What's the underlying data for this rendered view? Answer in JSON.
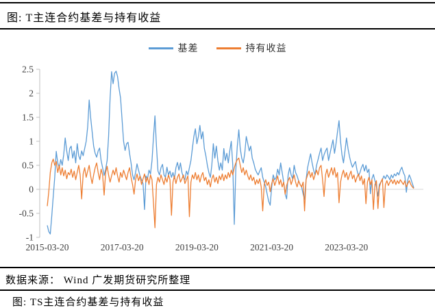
{
  "header": {
    "title": "图: T主连合约基差与持有收益"
  },
  "legend": [
    {
      "label": "基差",
      "color": "#5B9BD5"
    },
    {
      "label": "持有收益",
      "color": "#ED7D31"
    }
  ],
  "chart_data": {
    "type": "line",
    "title": "T主连合约基差与持有收益",
    "xlabel": "",
    "ylabel": "",
    "ylim": [
      -1,
      2.5
    ],
    "y_ticks": [
      2.5,
      2,
      1.5,
      1,
      0.5,
      0,
      -0.5,
      -1
    ],
    "x_tick_labels": [
      "2015-03-20",
      "2017-03-20",
      "2019-03-20",
      "2021-03-20",
      "2023-03-20"
    ],
    "x_tick_years": [
      2015.22,
      2017.22,
      2019.22,
      2021.22,
      2023.22
    ],
    "x_start": 2015.22,
    "x_step": 0.04,
    "grid": "zero-line-only",
    "legend_position": "top-center",
    "series": [
      {
        "name": "基差",
        "color": "#5B9BD5",
        "values": [
          -0.75,
          -0.88,
          -0.93,
          -0.55,
          -0.15,
          0.25,
          0.79,
          0.55,
          0.45,
          0.62,
          0.5,
          0.72,
          1.07,
          0.8,
          0.6,
          0.85,
          0.9,
          0.65,
          0.8,
          0.55,
          0.95,
          0.7,
          0.62,
          0.8,
          0.7,
          0.85,
          1.0,
          1.3,
          1.86,
          1.5,
          1.2,
          0.9,
          0.75,
          0.67,
          0.8,
          0.86,
          0.6,
          0.45,
          0.29,
          0.42,
          0.6,
          1.1,
          1.9,
          2.45,
          2.2,
          2.42,
          2.46,
          2.35,
          2.1,
          1.9,
          1.45,
          1.0,
          0.81,
          0.95,
          0.98,
          0.75,
          0.55,
          0.3,
          0.2,
          0.35,
          0.53,
          0.4,
          0.28,
          0.2,
          0.12,
          -0.42,
          0.28,
          0.22,
          0.4,
          0.32,
          0.6,
          1.1,
          1.53,
          0.9,
          0.38,
          0.3,
          0.45,
          0.52,
          0.3,
          0.25,
          0.46,
          0.3,
          0.38,
          0.25,
          0.35,
          0.22,
          0.45,
          0.56,
          0.4,
          0.55,
          0.35,
          0.25,
          0.2,
          0.38,
          0.3,
          0.45,
          0.6,
          0.85,
          1.1,
          1.26,
          0.95,
          1.1,
          1.33,
          1.05,
          1.2,
          0.85,
          0.7,
          0.5,
          0.35,
          0.25,
          0.5,
          0.95,
          0.65,
          0.9,
          0.6,
          0.4,
          0.55,
          0.4,
          0.85,
          0.6,
          0.75,
          0.55,
          0.8,
          1.0,
          0.5,
          -0.73,
          0.4,
          0.9,
          1.24,
          0.85,
          0.65,
          0.55,
          0.75,
          1.1,
          0.95,
          0.8,
          0.9,
          0.65,
          0.55,
          0.42,
          0.35,
          0.3,
          0.38,
          0.45,
          0.25,
          0.15,
          0.05,
          -0.1,
          -0.25,
          -0.33,
          0.05,
          0.3,
          0.2,
          0.25,
          0.42,
          0.3,
          0.55,
          0.35,
          0.15,
          -0.1,
          -0.2,
          0.3,
          0.45,
          0.3,
          0.22,
          0.5,
          0.35,
          0.28,
          0.18,
          0.1,
          0.05,
          -0.1,
          -0.21,
          0.2,
          0.45,
          0.6,
          0.74,
          0.55,
          0.4,
          0.3,
          0.5,
          0.62,
          0.75,
          0.86,
          0.6,
          0.72,
          0.8,
          0.86,
          0.6,
          0.75,
          0.9,
          1.03,
          0.75,
          0.95,
          1.2,
          1.43,
          1.0,
          0.72,
          0.55,
          0.8,
          1.07,
          0.85,
          0.68,
          0.55,
          0.46,
          0.52,
          0.58,
          0.4,
          0.28,
          0.35,
          0.45,
          0.52,
          0.38,
          0.5,
          0.35,
          0.42,
          -0.09,
          0.22,
          0.31,
          0.18,
          0.05,
          -0.14,
          0.1,
          0.15,
          0.2,
          0.28,
          0.22,
          0.3,
          0.26,
          0.2,
          0.3,
          0.24,
          0.32,
          0.28,
          0.35,
          0.3,
          0.4,
          0.46,
          0.35,
          0.28,
          -0.06,
          0.2,
          0.3,
          0.22,
          0.12,
          0.03
        ]
      },
      {
        "name": "持有收益",
        "color": "#ED7D31",
        "values": [
          -0.35,
          -0.05,
          0.35,
          0.55,
          0.63,
          0.5,
          0.58,
          0.35,
          0.5,
          0.3,
          0.45,
          0.28,
          0.4,
          0.22,
          0.35,
          0.3,
          0.42,
          0.25,
          0.38,
          0.2,
          0.35,
          0.5,
          0.3,
          -0.2,
          0.32,
          0.45,
          0.25,
          0.38,
          0.5,
          0.28,
          0.12,
          0.3,
          0.45,
          0.55,
          0.35,
          0.2,
          0.42,
          0.3,
          -0.12,
          0.35,
          0.48,
          0.3,
          0.15,
          0.28,
          0.4,
          0.3,
          0.45,
          0.28,
          0.15,
          0.35,
          0.25,
          0.4,
          0.3,
          0.2,
          0.35,
          0.45,
          0.25,
          0.1,
          -0.1,
          0.2,
          0.32,
          0.18,
          0.28,
          0.1,
          0.22,
          0.32,
          0.15,
          0.25,
          0.1,
          0.3,
          0.2,
          -0.3,
          -0.8,
          0.1,
          0.25,
          0.15,
          0.3,
          0.2,
          0.1,
          0.25,
          0.15,
          0.3,
          0.2,
          -0.54,
          0.15,
          0.28,
          0.12,
          0.25,
          0.32,
          0.15,
          0.22,
          0.3,
          0.12,
          0.2,
          0.28,
          -0.57,
          0.15,
          0.3,
          0.22,
          0.35,
          0.2,
          0.3,
          0.15,
          0.28,
          0.35,
          0.18,
          0.25,
          0.1,
          0.2,
          0.05,
          0.22,
          0.3,
          0.15,
          0.25,
          0.12,
          0.28,
          0.2,
          0.32,
          0.18,
          0.3,
          0.22,
          0.35,
          0.25,
          0.4,
          0.3,
          0.45,
          0.55,
          0.62,
          0.65,
          0.5,
          0.35,
          0.45,
          0.3,
          0.4,
          0.28,
          0.2,
          0.3,
          0.18,
          0.25,
          0.1,
          0.2,
          0.12,
          0.22,
          0.05,
          -0.45,
          0.1,
          0.2,
          0.08,
          0.15,
          -0.05,
          0.12,
          0.22,
          0.08,
          0.18,
          0.28,
          0.1,
          0.2,
          0.05,
          0.15,
          -0.1,
          0.08,
          0.18,
          0.25,
          0.1,
          0.2,
          0.3,
          0.15,
          0.05,
          0.18,
          0.1,
          0.05,
          0.15,
          -0.45,
          0.2,
          0.3,
          0.38,
          0.25,
          0.35,
          0.2,
          0.3,
          0.4,
          0.3,
          0.45,
          0.5,
          0.2,
          -0.15,
          0.3,
          0.42,
          0.25,
          0.35,
          0.45,
          0.3,
          0.45,
          0.25,
          0.35,
          -0.28,
          0.15,
          0.3,
          0.4,
          0.25,
          0.35,
          0.2,
          0.3,
          0.38,
          0.22,
          0.3,
          0.15,
          0.25,
          0.32,
          0.18,
          0.28,
          0.1,
          0.22,
          -0.3,
          0.15,
          0.25,
          0.1,
          0.2,
          -0.42,
          0.1,
          0.18,
          -0.4,
          0.05,
          0.15,
          0.22,
          -0.38,
          0.1,
          0.18,
          0.08,
          0.15,
          0.2,
          0.12,
          0.2,
          0.1,
          0.18,
          0.12,
          0.2,
          0.15,
          0.1,
          0.18,
          0.05,
          0.12,
          0.18,
          0.1,
          0.05,
          0.02
        ]
      }
    ]
  },
  "footer": {
    "source": "数据来源： Wind 广发期货研究所整理",
    "next_title": "图: TS主连合约基差与持有收益"
  }
}
